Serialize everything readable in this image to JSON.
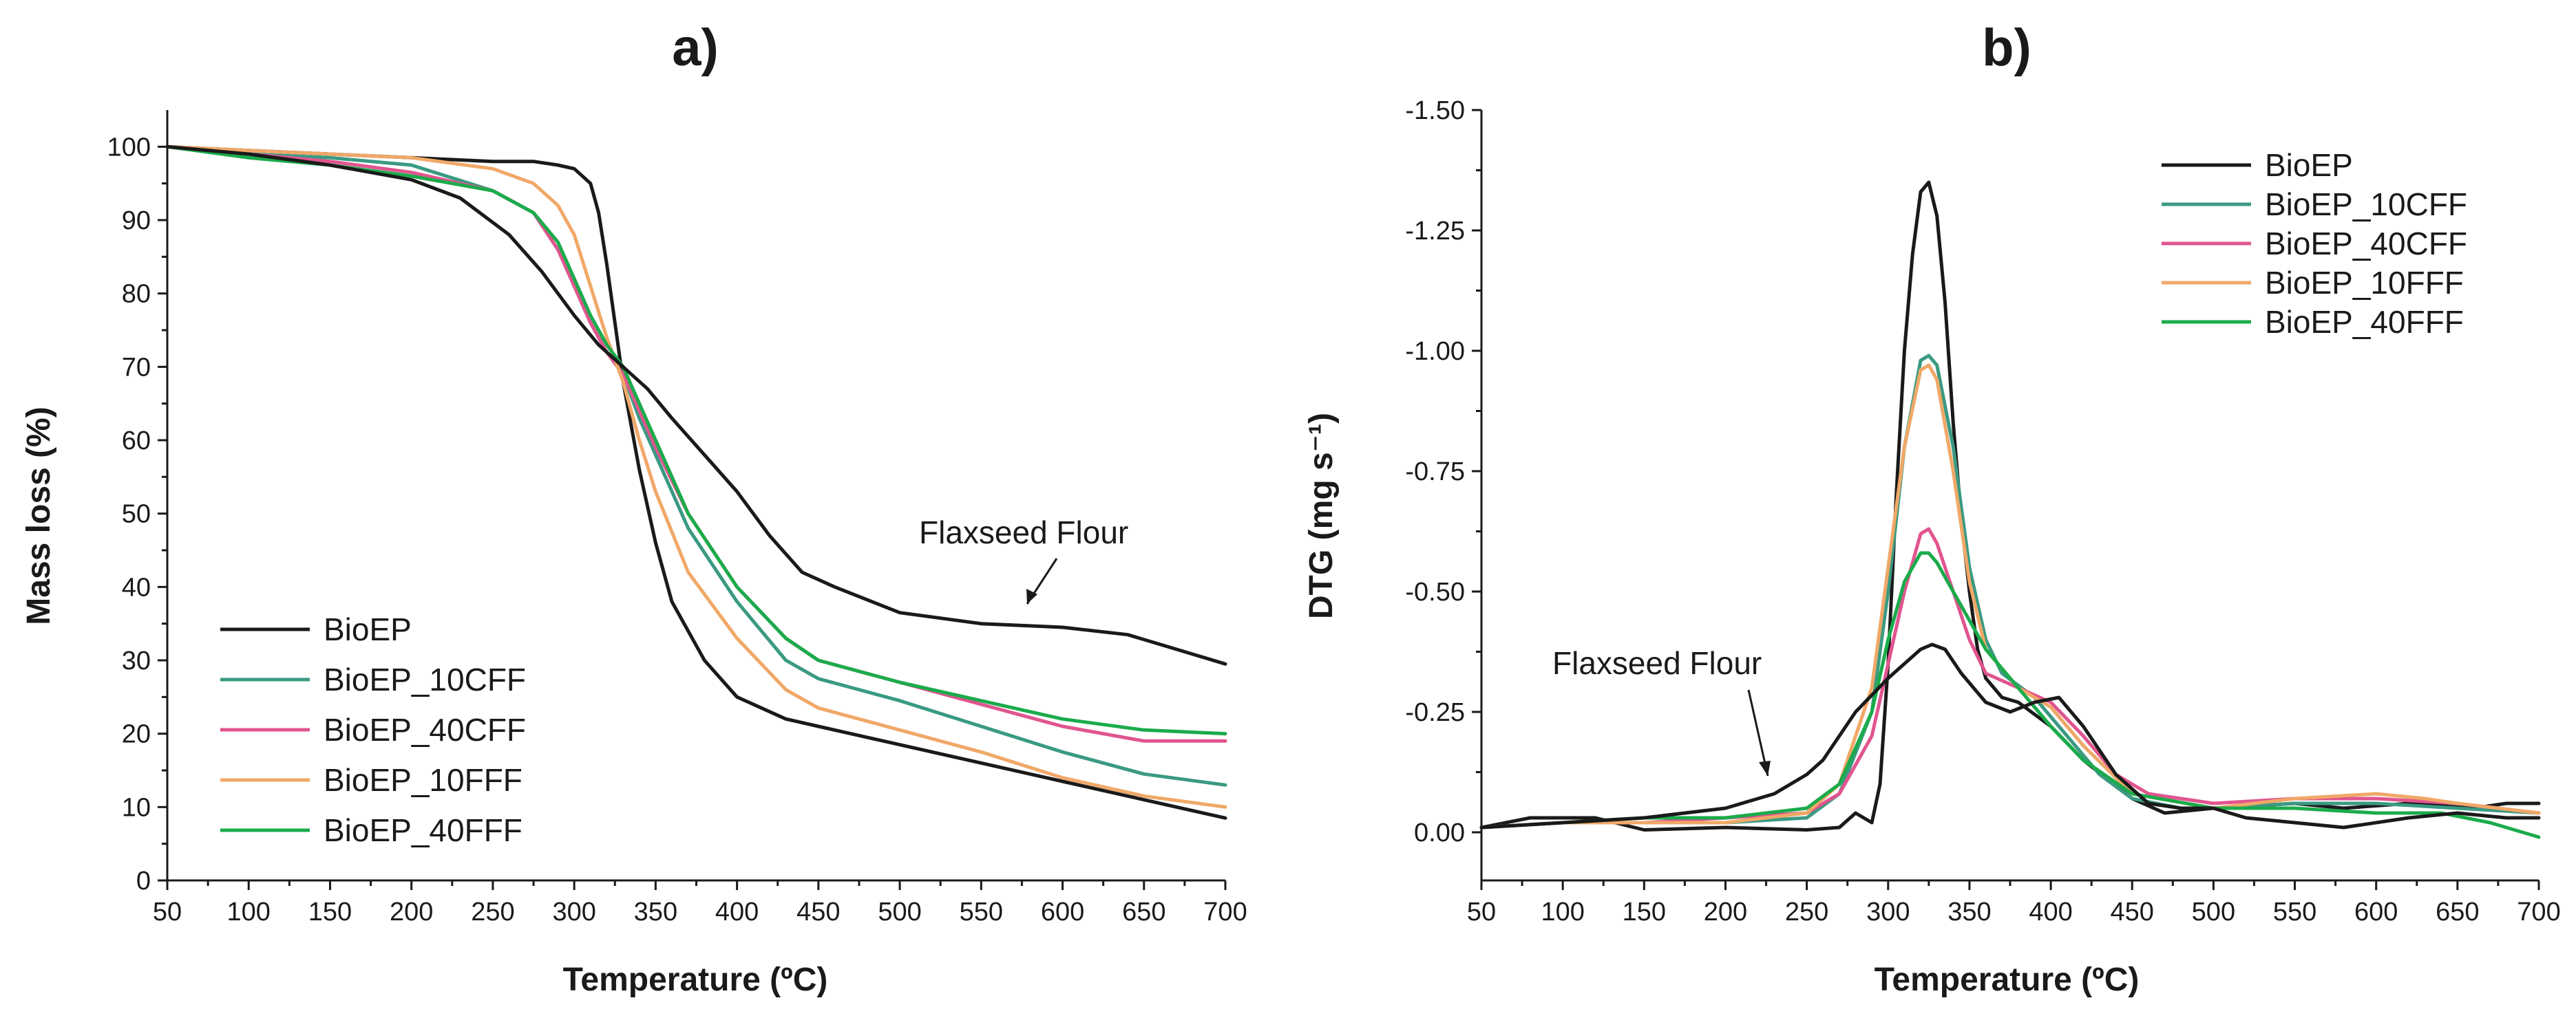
{
  "chart_data": [
    {
      "type": "line",
      "panel_label": "a)",
      "title": "",
      "xlabel": "Temperature (ºC)",
      "ylabel": "Mass loss (%)",
      "xlim": [
        50,
        700
      ],
      "ylim": [
        0,
        105
      ],
      "xticks": [
        50,
        100,
        150,
        200,
        250,
        300,
        350,
        400,
        450,
        500,
        550,
        600,
        650,
        700
      ],
      "yticks": [
        0,
        10,
        20,
        30,
        40,
        50,
        60,
        70,
        80,
        90,
        100
      ],
      "legend_position": "bottom-left",
      "annotation": {
        "text": "Flaxseed Flour",
        "target_x": 585,
        "target_y": 34.5
      },
      "series": [
        {
          "name": "BioEP",
          "color": "#1a1a1a",
          "x": [
            50,
            100,
            150,
            200,
            250,
            275,
            290,
            300,
            310,
            315,
            320,
            325,
            330,
            340,
            350,
            360,
            380,
            400,
            430,
            450,
            470,
            500,
            550,
            600,
            650,
            700
          ],
          "y": [
            100,
            99.5,
            99,
            98.5,
            98,
            98,
            97.5,
            97,
            95,
            91,
            84,
            76,
            68,
            56,
            46,
            38,
            30,
            25,
            22,
            21,
            20,
            18.5,
            16,
            13.5,
            11,
            8.5
          ]
        },
        {
          "name": "BioEP_10CFF",
          "color": "#3a9a82",
          "x": [
            50,
            100,
            150,
            200,
            250,
            275,
            290,
            300,
            310,
            320,
            330,
            340,
            350,
            370,
            400,
            430,
            450,
            500,
            550,
            600,
            650,
            700
          ],
          "y": [
            100,
            99,
            98.5,
            97.5,
            94,
            91,
            86,
            81,
            76,
            72,
            69,
            63,
            58,
            48,
            38,
            30,
            27.5,
            24.5,
            21,
            17.5,
            14.5,
            13
          ]
        },
        {
          "name": "BioEP_40CFF",
          "color": "#e0558f",
          "x": [
            50,
            100,
            150,
            200,
            250,
            275,
            290,
            300,
            310,
            320,
            330,
            340,
            350,
            370,
            400,
            430,
            450,
            500,
            550,
            600,
            650,
            700
          ],
          "y": [
            100,
            99,
            98,
            96.5,
            94,
            91,
            86,
            81,
            76,
            72,
            69,
            64,
            59,
            50,
            40,
            33,
            30,
            27,
            24,
            21,
            19,
            19
          ]
        },
        {
          "name": "BioEP_10FFF",
          "color": "#f0a868",
          "x": [
            50,
            100,
            150,
            200,
            250,
            275,
            290,
            300,
            310,
            320,
            330,
            340,
            350,
            370,
            400,
            430,
            450,
            500,
            550,
            600,
            650,
            700
          ],
          "y": [
            100,
            99.5,
            99,
            98.5,
            97,
            95,
            92,
            88,
            81,
            74,
            68,
            60,
            53,
            42,
            33,
            26,
            23.5,
            20.5,
            17.5,
            14,
            11.5,
            10
          ]
        },
        {
          "name": "BioEP_40FFF",
          "color": "#1bab4b",
          "x": [
            50,
            100,
            150,
            200,
            250,
            275,
            290,
            300,
            310,
            320,
            330,
            340,
            350,
            370,
            400,
            430,
            450,
            500,
            550,
            600,
            650,
            700
          ],
          "y": [
            100,
            98.5,
            97.5,
            96,
            94,
            91,
            87,
            82,
            77,
            73,
            70,
            65,
            60,
            50,
            40,
            33,
            30,
            27,
            24.5,
            22,
            20.5,
            20
          ]
        },
        {
          "name": "BioEP_flaxseed",
          "legend": false,
          "color": "#1a1a1a",
          "x": [
            50,
            100,
            150,
            200,
            230,
            260,
            280,
            300,
            315,
            330,
            345,
            360,
            380,
            400,
            420,
            440,
            460,
            500,
            550,
            600,
            640,
            670,
            700
          ],
          "y": [
            100,
            99,
            97.5,
            95.5,
            93,
            88,
            83,
            77,
            73,
            70,
            67,
            63,
            58,
            53,
            47,
            42,
            40,
            36.5,
            35,
            34.5,
            33.5,
            31.5,
            29.5
          ]
        }
      ]
    },
    {
      "type": "line",
      "panel_label": "b)",
      "title": "",
      "xlabel": "Temperature (ºC)",
      "ylabel": "DTG (mg s⁻¹)",
      "xlim": [
        50,
        700
      ],
      "ylim": [
        0.1,
        -1.5
      ],
      "y_inverted": true,
      "xticks": [
        50,
        100,
        150,
        200,
        250,
        300,
        350,
        400,
        450,
        500,
        550,
        600,
        650,
        700
      ],
      "yticks": [
        0.0,
        -0.25,
        -0.5,
        -0.75,
        -1.0,
        -1.25,
        -1.5
      ],
      "ytick_labels": [
        "0.00",
        "-0.25",
        "-0.50",
        "-0.75",
        "-1.00",
        "-1.25",
        "-1.50"
      ],
      "legend_position": "top-right",
      "annotation": {
        "text": "Flaxseed Flour",
        "target_x": 228,
        "target_y": -0.1
      },
      "series": [
        {
          "name": "BioEP",
          "color": "#1a1a1a",
          "x": [
            50,
            80,
            120,
            150,
            200,
            250,
            270,
            280,
            285,
            290,
            295,
            300,
            305,
            310,
            315,
            320,
            325,
            330,
            335,
            340,
            345,
            350,
            355,
            360,
            370,
            380,
            400,
            420,
            450,
            470,
            500,
            550,
            580,
            620,
            660,
            680,
            700
          ],
          "y": [
            -0.01,
            -0.03,
            -0.03,
            -0.005,
            -0.01,
            -0.005,
            -0.01,
            -0.04,
            -0.03,
            -0.02,
            -0.1,
            -0.35,
            -0.7,
            -1.0,
            -1.2,
            -1.33,
            -1.35,
            -1.28,
            -1.1,
            -0.85,
            -0.65,
            -0.5,
            -0.38,
            -0.32,
            -0.28,
            -0.27,
            -0.22,
            -0.15,
            -0.07,
            -0.04,
            -0.05,
            -0.06,
            -0.05,
            -0.06,
            -0.05,
            -0.06,
            -0.06
          ]
        },
        {
          "name": "BioEP_10CFF",
          "color": "#3a9a82",
          "x": [
            50,
            100,
            150,
            200,
            250,
            270,
            290,
            300,
            310,
            320,
            325,
            330,
            340,
            350,
            360,
            370,
            390,
            410,
            430,
            450,
            480,
            500,
            550,
            600,
            650,
            700
          ],
          "y": [
            -0.01,
            -0.02,
            -0.02,
            -0.02,
            -0.03,
            -0.08,
            -0.25,
            -0.5,
            -0.8,
            -0.98,
            -0.99,
            -0.97,
            -0.8,
            -0.55,
            -0.4,
            -0.33,
            -0.28,
            -0.2,
            -0.12,
            -0.07,
            -0.05,
            -0.05,
            -0.06,
            -0.06,
            -0.05,
            -0.04
          ]
        },
        {
          "name": "BioEP_40CFF",
          "color": "#e0558f",
          "x": [
            50,
            100,
            150,
            200,
            250,
            270,
            290,
            300,
            310,
            320,
            325,
            330,
            340,
            350,
            360,
            380,
            400,
            420,
            440,
            460,
            500,
            550,
            600,
            650,
            700
          ],
          "y": [
            -0.01,
            -0.02,
            -0.02,
            -0.03,
            -0.04,
            -0.08,
            -0.2,
            -0.35,
            -0.5,
            -0.62,
            -0.63,
            -0.6,
            -0.5,
            -0.4,
            -0.33,
            -0.3,
            -0.27,
            -0.2,
            -0.12,
            -0.08,
            -0.06,
            -0.07,
            -0.07,
            -0.06,
            -0.04
          ]
        },
        {
          "name": "BioEP_10FFF",
          "color": "#f0a868",
          "x": [
            50,
            100,
            150,
            200,
            250,
            270,
            290,
            300,
            310,
            320,
            325,
            330,
            340,
            350,
            360,
            380,
            400,
            420,
            450,
            500,
            550,
            600,
            630,
            650,
            700
          ],
          "y": [
            -0.01,
            -0.02,
            -0.02,
            -0.02,
            -0.04,
            -0.1,
            -0.3,
            -0.55,
            -0.8,
            -0.96,
            -0.97,
            -0.94,
            -0.75,
            -0.52,
            -0.38,
            -0.3,
            -0.26,
            -0.18,
            -0.08,
            -0.05,
            -0.07,
            -0.08,
            -0.07,
            -0.06,
            -0.04
          ]
        },
        {
          "name": "BioEP_40FFF",
          "color": "#1bab4b",
          "x": [
            50,
            100,
            150,
            200,
            250,
            270,
            290,
            300,
            310,
            320,
            325,
            330,
            340,
            350,
            360,
            380,
            400,
            420,
            450,
            500,
            550,
            600,
            640,
            670,
            700
          ],
          "y": [
            -0.01,
            -0.02,
            -0.03,
            -0.03,
            -0.05,
            -0.1,
            -0.25,
            -0.4,
            -0.52,
            -0.58,
            -0.58,
            -0.56,
            -0.5,
            -0.44,
            -0.38,
            -0.3,
            -0.22,
            -0.15,
            -0.08,
            -0.05,
            -0.05,
            -0.04,
            -0.04,
            -0.02,
            0.01
          ]
        },
        {
          "name": "BioEP_flaxseed",
          "legend": false,
          "color": "#1a1a1a",
          "x": [
            50,
            100,
            150,
            200,
            230,
            250,
            260,
            280,
            300,
            320,
            327,
            335,
            345,
            360,
            375,
            390,
            405,
            420,
            440,
            460,
            480,
            500,
            520,
            550,
            580,
            620,
            650,
            680,
            700
          ],
          "y": [
            -0.01,
            -0.02,
            -0.03,
            -0.05,
            -0.08,
            -0.12,
            -0.15,
            -0.25,
            -0.32,
            -0.38,
            -0.39,
            -0.38,
            -0.33,
            -0.27,
            -0.25,
            -0.27,
            -0.28,
            -0.22,
            -0.12,
            -0.06,
            -0.05,
            -0.05,
            -0.03,
            -0.02,
            -0.01,
            -0.03,
            -0.04,
            -0.03,
            -0.03
          ]
        }
      ]
    }
  ]
}
